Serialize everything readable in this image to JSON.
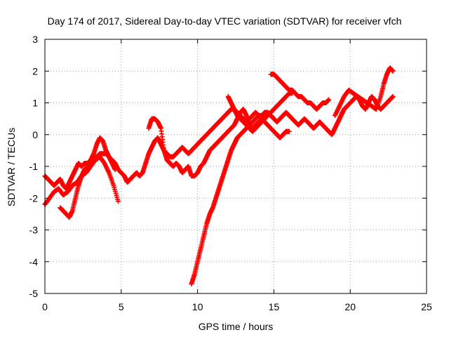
{
  "chart_data": {
    "type": "scatter",
    "title": "Day 174 of 2017, Sidereal Day-to-day VTEC variation (SDTVAR) for receiver vfch",
    "xlabel": "GPS time / hours",
    "ylabel": "SDTVAR / TECUs",
    "xlim": [
      0,
      25
    ],
    "ylim": [
      -5,
      3
    ],
    "xticks": [
      0,
      5,
      10,
      15,
      20,
      25
    ],
    "yticks": [
      -5,
      -4,
      -3,
      -2,
      -1,
      0,
      1,
      2,
      3
    ],
    "grid": true,
    "marker": "plus",
    "color": "#ff0000",
    "series": [
      {
        "x": [
          0.0,
          0.2,
          0.4,
          0.6,
          0.8,
          1.0,
          1.2,
          1.4,
          1.6,
          1.8,
          2.0,
          2.2,
          2.4,
          2.6,
          2.8,
          3.0,
          3.2,
          3.4,
          3.6,
          3.8,
          4.0,
          4.2,
          4.4,
          4.6,
          4.8,
          5.0,
          5.2,
          5.4,
          5.6,
          5.8,
          6.0,
          6.2,
          6.4,
          6.6,
          6.8,
          7.0,
          7.2,
          7.4,
          7.6,
          7.8,
          8.0,
          8.2,
          8.4,
          8.6,
          8.8,
          9.0,
          9.2,
          9.4,
          9.6,
          9.8,
          10.0,
          10.2,
          10.4,
          10.6,
          10.8,
          11.0,
          11.2,
          11.4,
          11.6,
          11.8,
          12.0,
          12.2,
          12.4,
          12.6,
          12.8,
          13.0,
          13.2,
          13.4,
          13.6,
          13.8,
          14.0,
          14.2,
          14.4,
          14.6,
          14.8,
          15.0,
          15.2,
          15.4,
          15.6,
          15.8,
          16.0,
          16.2,
          16.4,
          16.6,
          16.8,
          17.0,
          17.2,
          17.4,
          17.6,
          17.8,
          18.0,
          18.2,
          18.4,
          18.6,
          18.8,
          19.0,
          19.2,
          19.4,
          19.6,
          19.8,
          20.0,
          20.2,
          20.4,
          20.6,
          20.8,
          21.0,
          21.2,
          21.4,
          21.6,
          21.8,
          22.0,
          22.2,
          22.4,
          22.6,
          22.8
        ],
        "y": [
          -1.3,
          -1.4,
          -1.5,
          -1.6,
          -1.5,
          -1.4,
          -1.6,
          -1.7,
          -1.5,
          -1.3,
          -1.1,
          -0.9,
          -1.0,
          -0.9,
          -0.9,
          -0.8,
          -0.6,
          -0.3,
          -0.1,
          -0.2,
          -0.5,
          -0.7,
          -0.8,
          -0.9,
          -1.1,
          -1.2,
          -1.3,
          -1.5,
          -1.4,
          -1.3,
          -1.2,
          -1.3,
          -1.2,
          -0.9,
          -0.6,
          -0.4,
          -0.2,
          -0.1,
          -0.3,
          -0.5,
          -0.6,
          -0.7,
          -0.7,
          -0.6,
          -0.5,
          -0.4,
          -0.5,
          -0.6,
          -0.5,
          -0.4,
          -0.3,
          -0.2,
          -0.1,
          0.0,
          0.1,
          0.2,
          0.3,
          0.4,
          0.5,
          0.6,
          0.7,
          0.8,
          0.8,
          0.7,
          0.6,
          0.5,
          0.4,
          0.5,
          0.6,
          0.7,
          0.6,
          0.5,
          0.6,
          0.7,
          0.6,
          0.5,
          0.4,
          0.5,
          0.6,
          0.7,
          0.6,
          0.5,
          0.4,
          0.3,
          0.4,
          0.5,
          0.4,
          0.3,
          0.2,
          0.3,
          0.4,
          0.3,
          0.2,
          0.1,
          0.0,
          0.2,
          0.4,
          0.6,
          0.8,
          0.9,
          1.0,
          1.1,
          1.2,
          1.1,
          0.9,
          0.8,
          1.0,
          1.2,
          1.1,
          0.9,
          0.8,
          0.9,
          1.0,
          1.1,
          1.2
        ]
      },
      {
        "x": [
          0.0,
          0.3,
          0.6,
          0.9,
          1.2,
          1.5,
          1.8,
          2.1,
          2.4,
          2.7,
          3.0,
          3.3,
          3.6,
          3.9,
          4.2,
          4.5,
          4.8
        ],
        "y": [
          -2.2,
          -2.0,
          -1.8,
          -1.7,
          -1.9,
          -1.8,
          -1.6,
          -1.5,
          -1.3,
          -1.2,
          -1.0,
          -0.8,
          -0.7,
          -0.9,
          -1.2,
          -1.6,
          -2.1
        ]
      },
      {
        "x": [
          1.0,
          1.2,
          1.4,
          1.6,
          1.8,
          2.0,
          2.2,
          2.4,
          2.6,
          2.8,
          3.0,
          3.2,
          3.4,
          3.6,
          3.8,
          4.0,
          4.2,
          4.4,
          4.6
        ],
        "y": [
          -2.3,
          -2.4,
          -2.5,
          -2.6,
          -2.4,
          -2.0,
          -1.6,
          -1.3,
          -1.1,
          -1.0,
          -0.9,
          -0.8,
          -0.7,
          -0.6,
          -0.6,
          -0.6,
          -0.7,
          -0.9,
          -1.1
        ]
      },
      {
        "x": [
          6.8,
          7.0,
          7.2,
          7.4,
          7.6,
          7.8,
          8.0,
          8.2,
          8.4,
          8.6,
          8.8,
          9.0,
          9.2,
          9.4,
          9.6,
          9.8,
          10.0,
          10.2,
          10.4,
          10.6,
          10.8,
          11.0,
          11.2,
          11.4,
          11.6,
          11.8,
          12.0,
          12.2,
          12.4,
          12.6,
          12.8,
          13.0,
          13.2,
          13.4,
          13.6,
          13.8,
          14.0,
          14.2,
          14.4,
          14.6,
          14.8,
          15.0,
          15.2,
          15.4,
          15.6,
          15.8,
          16.0
        ],
        "y": [
          0.2,
          0.5,
          0.5,
          0.4,
          0.2,
          -0.5,
          -0.8,
          -0.9,
          -1.0,
          -0.9,
          -1.0,
          -1.2,
          -1.1,
          -1.0,
          -1.3,
          -1.3,
          -1.2,
          -1.0,
          -0.9,
          -0.7,
          -0.5,
          -0.4,
          -0.3,
          -0.2,
          -0.1,
          0.0,
          0.1,
          0.2,
          0.3,
          0.5,
          0.7,
          0.8,
          0.6,
          0.3,
          0.2,
          0.3,
          0.4,
          0.5,
          0.4,
          0.3,
          0.2,
          0.1,
          0.0,
          -0.1,
          0.0,
          0.1,
          0.1
        ]
      },
      {
        "x": [
          9.6,
          9.8,
          10.0,
          10.2,
          10.4,
          10.6,
          10.8,
          11.0,
          11.2,
          11.4,
          11.6,
          11.8,
          12.0,
          12.2,
          12.4,
          12.6,
          12.8,
          13.0,
          13.2,
          13.4,
          13.6,
          13.8,
          14.0,
          14.2,
          14.4,
          14.6,
          14.8,
          15.0
        ],
        "y": [
          -4.7,
          -4.4,
          -4.0,
          -3.6,
          -3.2,
          -2.8,
          -2.5,
          -2.3,
          -2.0,
          -1.7,
          -1.4,
          -1.1,
          -0.8,
          -0.5,
          -0.3,
          -0.1,
          0.0,
          0.1,
          0.2,
          0.3,
          0.4,
          0.5,
          0.6,
          0.6,
          0.7,
          0.7,
          0.6,
          0.5
        ]
      },
      {
        "x": [
          12.0,
          12.2,
          12.4,
          12.6,
          12.8,
          13.0,
          13.2,
          13.4,
          13.6,
          13.8,
          14.0,
          14.2,
          14.4,
          14.6,
          14.8,
          15.0,
          15.2,
          15.4,
          15.6,
          15.8,
          16.0,
          16.2
        ],
        "y": [
          1.2,
          1.0,
          0.8,
          0.6,
          0.5,
          0.4,
          0.3,
          0.2,
          0.1,
          0.2,
          0.3,
          0.4,
          0.5,
          0.6,
          0.7,
          0.8,
          0.9,
          1.0,
          1.1,
          1.2,
          1.3,
          1.3
        ]
      },
      {
        "x": [
          14.8,
          15.0,
          15.2,
          15.4,
          15.6,
          15.8,
          16.0,
          16.2,
          16.4,
          16.6,
          16.8,
          17.0,
          17.2,
          17.4,
          17.6,
          17.8,
          18.0,
          18.2,
          18.4,
          18.6
        ],
        "y": [
          1.9,
          1.9,
          1.8,
          1.7,
          1.6,
          1.5,
          1.4,
          1.4,
          1.3,
          1.2,
          1.2,
          1.1,
          1.0,
          1.0,
          0.9,
          0.8,
          0.9,
          1.0,
          1.0,
          1.1
        ]
      },
      {
        "x": [
          19.0,
          19.3,
          19.6,
          19.9,
          20.2,
          20.5,
          20.8,
          21.1,
          21.4,
          21.7,
          22.0,
          22.2,
          22.4,
          22.6,
          22.8
        ],
        "y": [
          0.6,
          0.9,
          1.2,
          1.4,
          1.3,
          1.2,
          1.1,
          1.0,
          0.9,
          0.8,
          1.2,
          1.6,
          1.9,
          2.1,
          2.0
        ]
      }
    ]
  }
}
